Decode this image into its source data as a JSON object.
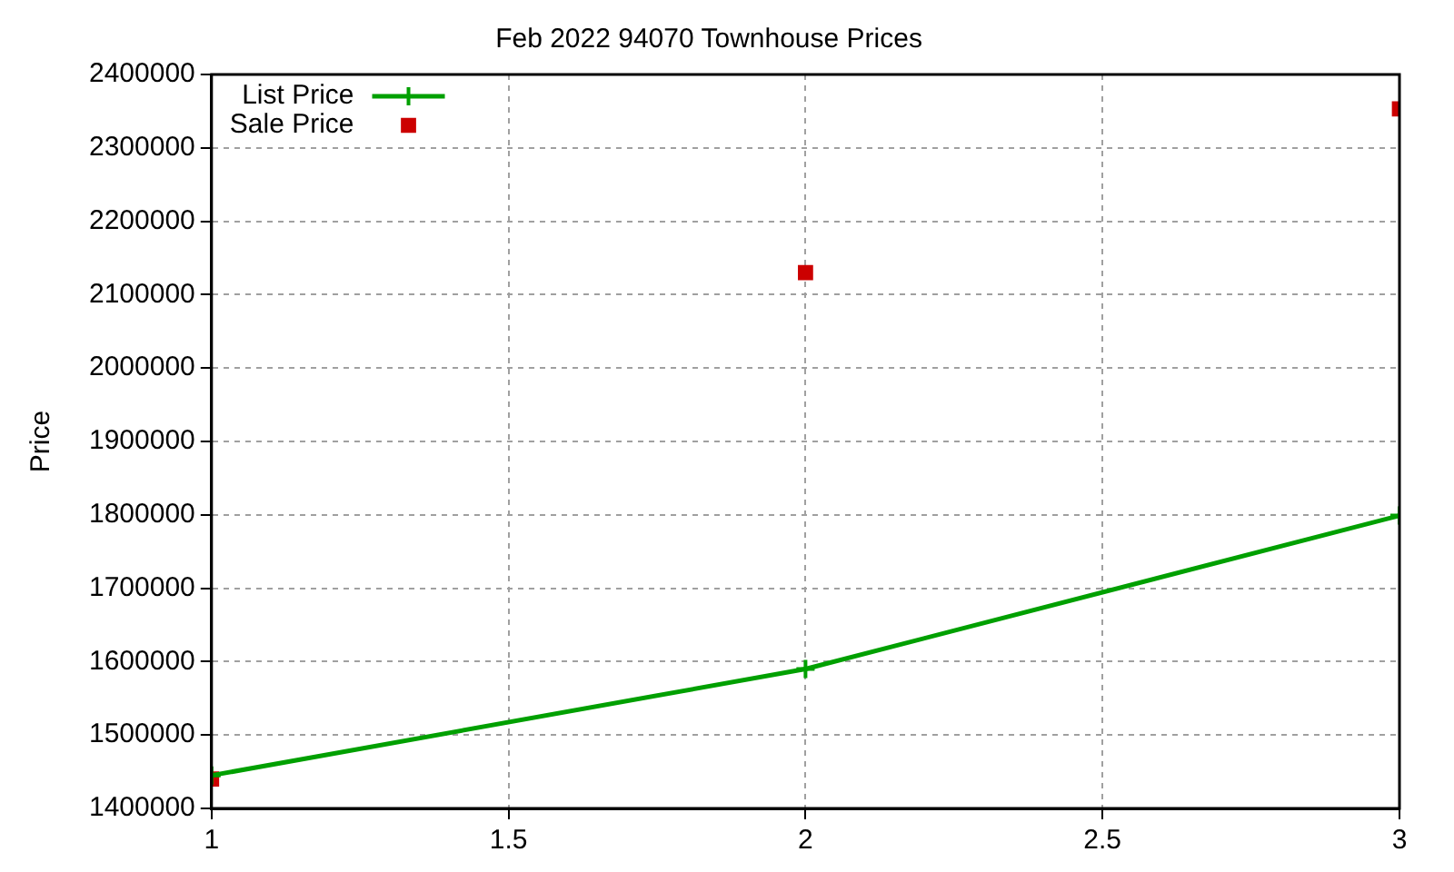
{
  "chart_data": {
    "type": "line",
    "title": "Feb 2022 94070 Townhouse Prices",
    "ylabel": "Price",
    "x": [
      1,
      2,
      3
    ],
    "series": [
      {
        "name": "List Price",
        "color": "#00a000",
        "marker": "cross",
        "line_style": "solid",
        "values": [
          1445000,
          1590000,
          1799000
        ]
      },
      {
        "name": "Sale Price",
        "type": "scatter",
        "color": "#cc0000",
        "marker": "square",
        "values": [
          1440000,
          2130000,
          2353000
        ]
      }
    ],
    "xlim": [
      1,
      3
    ],
    "xticks": [
      1,
      1.5,
      2,
      2.5,
      3
    ],
    "ylim": [
      1400000,
      2400000
    ],
    "yticks": [
      1400000,
      1500000,
      1600000,
      1700000,
      1800000,
      1900000,
      2000000,
      2100000,
      2200000,
      2300000,
      2400000
    ],
    "grid": true,
    "legend": "top left"
  }
}
